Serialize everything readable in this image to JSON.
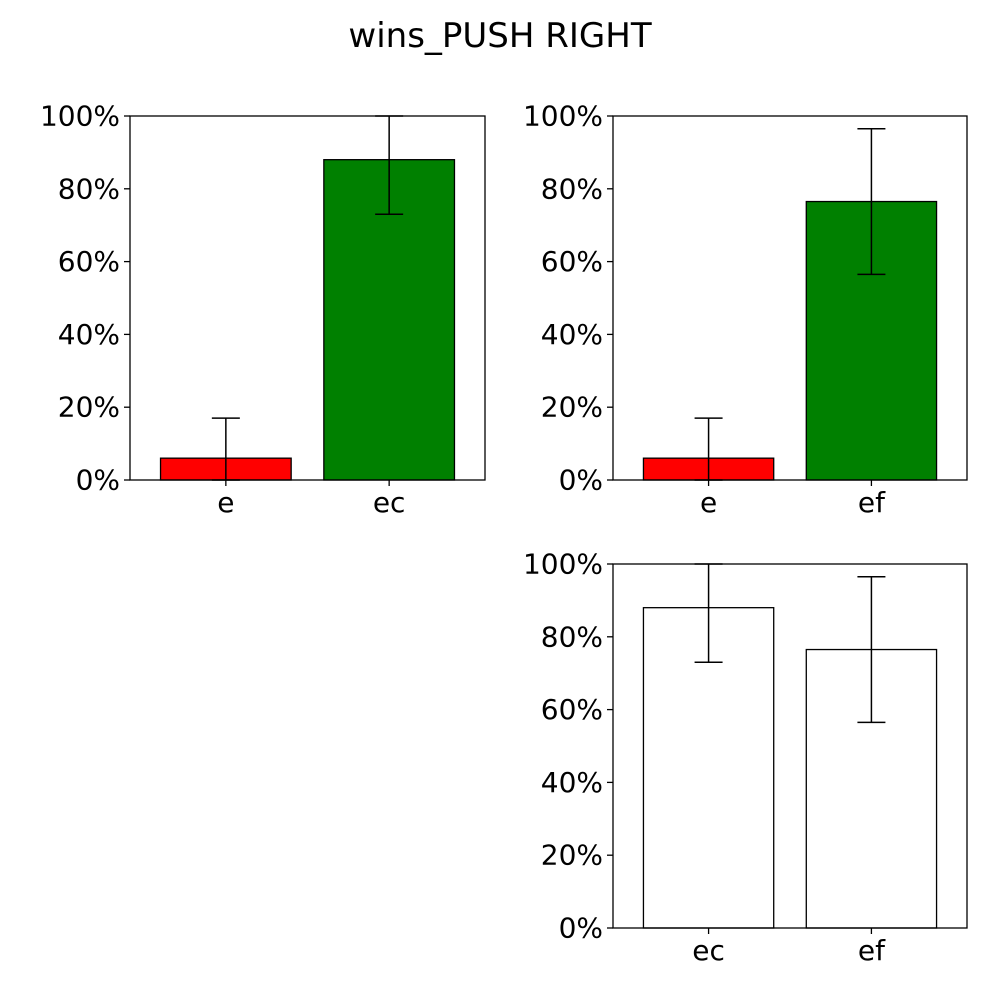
{
  "figure": {
    "title": "wins_PUSH RIGHT"
  },
  "chart_data": [
    {
      "type": "bar",
      "categories": [
        "e",
        "ec"
      ],
      "values": [
        6,
        88
      ],
      "error_low": [
        0,
        73
      ],
      "error_high": [
        17,
        100
      ],
      "colors": [
        "#ff0000",
        "#008000"
      ],
      "xlabel": "",
      "ylabel": "",
      "ylim": [
        0,
        100
      ],
      "y_ticks": [
        "0%",
        "20%",
        "40%",
        "60%",
        "80%",
        "100%"
      ],
      "grid": false
    },
    {
      "type": "bar",
      "categories": [
        "e",
        "ef"
      ],
      "values": [
        6,
        76.5
      ],
      "error_low": [
        0,
        56.5
      ],
      "error_high": [
        17,
        96.5
      ],
      "colors": [
        "#ff0000",
        "#008000"
      ],
      "xlabel": "",
      "ylabel": "",
      "ylim": [
        0,
        100
      ],
      "y_ticks": [
        "0%",
        "20%",
        "40%",
        "60%",
        "80%",
        "100%"
      ],
      "grid": false
    },
    {
      "type": "bar",
      "categories": [
        "ec",
        "ef"
      ],
      "values": [
        88,
        76.5
      ],
      "error_low": [
        73,
        56.5
      ],
      "error_high": [
        100,
        96.5
      ],
      "colors": [
        "#ffffff",
        "#ffffff"
      ],
      "xlabel": "",
      "ylabel": "",
      "ylim": [
        0,
        100
      ],
      "y_ticks": [
        "0%",
        "20%",
        "40%",
        "60%",
        "80%",
        "100%"
      ],
      "grid": false
    }
  ]
}
